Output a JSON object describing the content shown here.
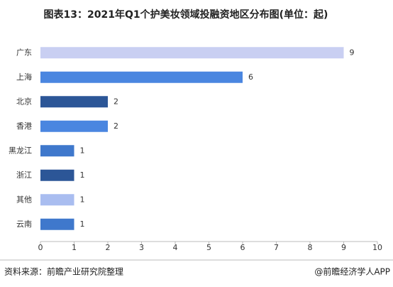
{
  "chart_data": {
    "type": "bar",
    "orientation": "horizontal",
    "title": "图表13：2021年Q1个护美妆领域投融资地区分布图(单位：起)",
    "categories": [
      "广东",
      "上海",
      "北京",
      "香港",
      "黑龙江",
      "浙江",
      "其他",
      "云南"
    ],
    "values": [
      9,
      6,
      2,
      2,
      1,
      1,
      1,
      1
    ],
    "colors": [
      "#c9cff2",
      "#4a86e0",
      "#2c5697",
      "#4a86e0",
      "#3f78cc",
      "#2c5697",
      "#a9bdf0",
      "#3f78cc"
    ],
    "xlim": [
      0,
      10
    ],
    "xticks": [
      0,
      1,
      2,
      3,
      4,
      5,
      6,
      7,
      8,
      9,
      10
    ],
    "grid": false
  },
  "footer": {
    "source": "资料来源：前瞻产业研究院整理",
    "brand": "@前瞻经济学人APP"
  }
}
